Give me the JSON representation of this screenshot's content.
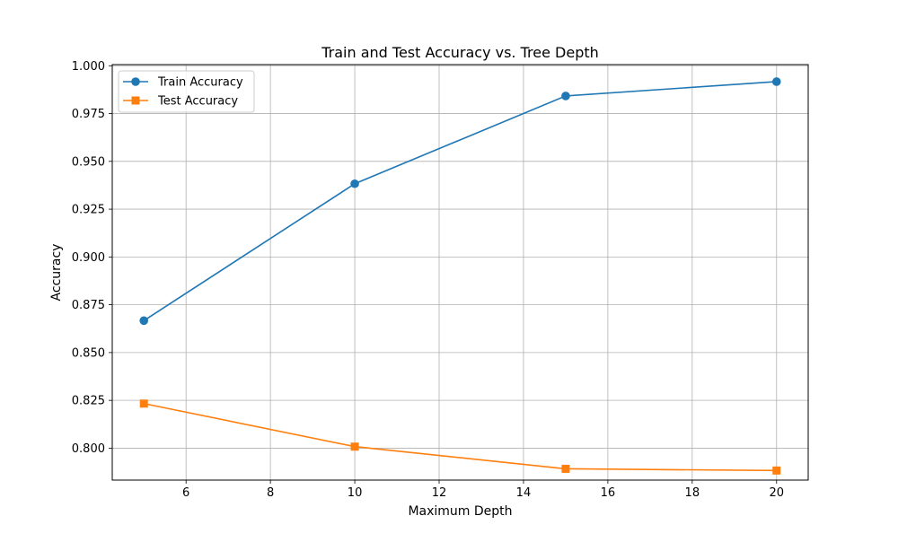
{
  "chart_data": {
    "type": "line",
    "title": "Train and Test Accuracy vs. Tree Depth",
    "xlabel": "Maximum Depth",
    "ylabel": "Accuracy",
    "xlim": [
      4.25,
      20.75
    ],
    "ylim": [
      0.7833,
      1.0006
    ],
    "x_ticks": [
      6,
      8,
      10,
      12,
      14,
      16,
      18,
      20
    ],
    "x_tick_labels": [
      "6",
      "8",
      "10",
      "12",
      "14",
      "16",
      "18",
      "20"
    ],
    "y_ticks": [
      0.8,
      0.825,
      0.85,
      0.875,
      0.9,
      0.925,
      0.95,
      0.975,
      1.0
    ],
    "y_tick_labels": [
      "0.800",
      "0.825",
      "0.850",
      "0.875",
      "0.900",
      "0.925",
      "0.950",
      "0.975",
      "1.000"
    ],
    "grid": true,
    "legend_position": "top-left",
    "x": [
      5,
      10,
      15,
      20
    ],
    "series": [
      {
        "name": "Train Accuracy",
        "values": [
          0.8667,
          0.9383,
          0.9842,
          0.9917
        ],
        "color": "#1f77b4",
        "marker": "circle"
      },
      {
        "name": "Test Accuracy",
        "values": [
          0.8233,
          0.8008,
          0.7892,
          0.7883
        ],
        "color": "#ff7f0e",
        "marker": "square"
      }
    ]
  }
}
